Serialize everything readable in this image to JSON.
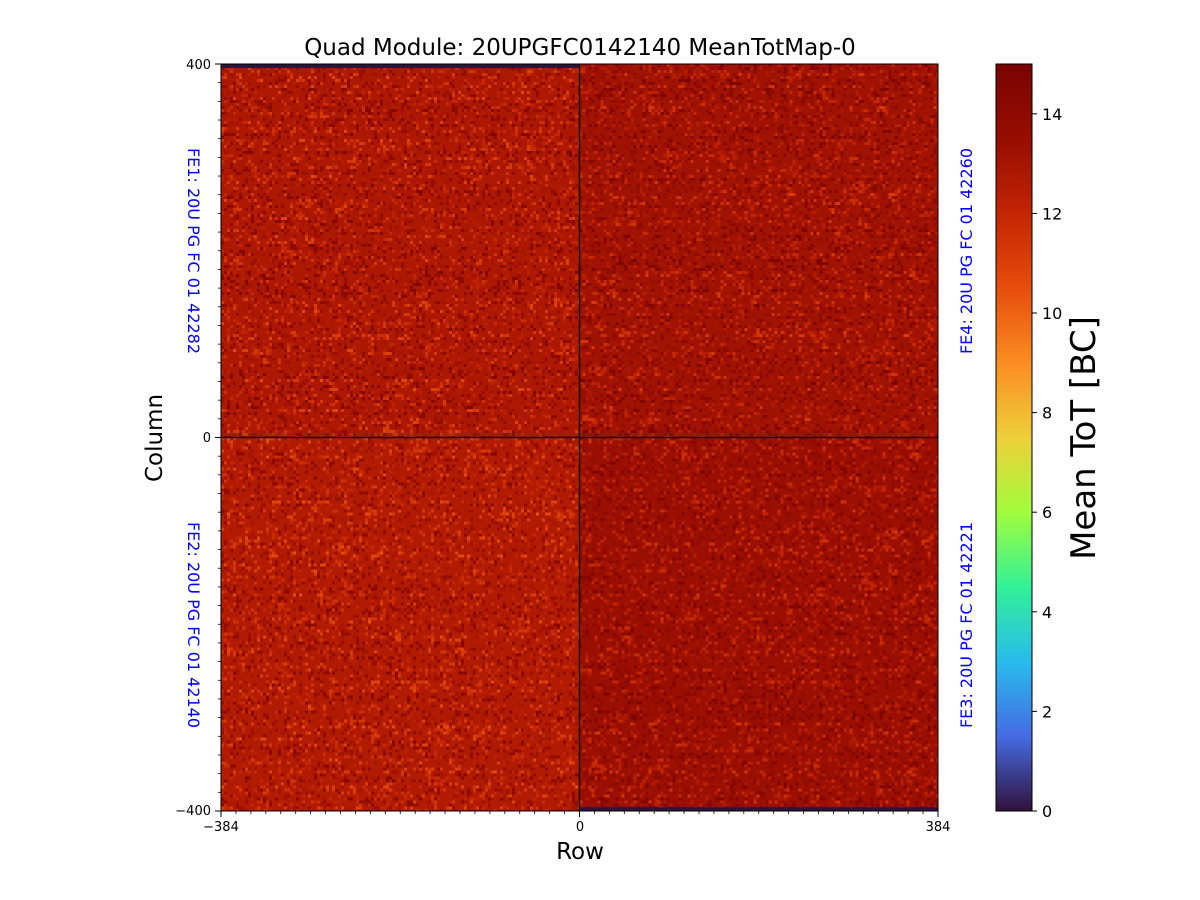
{
  "chart_data": {
    "type": "heatmap",
    "title": "Quad Module: 20UPGFC0142140 MeanTotMap-0",
    "xlabel": "Row",
    "ylabel": "Column",
    "xlim": [
      -384,
      384
    ],
    "ylim": [
      -400,
      400
    ],
    "xticks": [
      "−384",
      "0",
      "384"
    ],
    "yticks": [
      "400",
      "0",
      "−400"
    ],
    "colorbar": {
      "label": "Mean ToT [BC]",
      "range": [
        0,
        15
      ],
      "ticks": [
        "0",
        "2",
        "4",
        "6",
        "8",
        "10",
        "12",
        "14"
      ],
      "colormap": "turbo"
    },
    "quadrants": [
      {
        "label": "FE1: 20U PG FC 01 42282",
        "x_range": [
          -384,
          0
        ],
        "y_range": [
          0,
          400
        ],
        "mean_tot": 12.8,
        "side": "left"
      },
      {
        "label": "FE4: 20U PG FC 01 42260",
        "x_range": [
          0,
          384
        ],
        "y_range": [
          0,
          400
        ],
        "mean_tot": 13.2,
        "side": "right"
      },
      {
        "label": "FE2: 20U PG FC 01 42140",
        "x_range": [
          -384,
          0
        ],
        "y_range": [
          -400,
          0
        ],
        "mean_tot": 12.6,
        "side": "left"
      },
      {
        "label": "FE3: 20U PG FC 01 42221",
        "x_range": [
          0,
          384
        ],
        "y_range": [
          -400,
          0
        ],
        "mean_tot": 13.4,
        "side": "right"
      }
    ],
    "empty_bands": [
      {
        "x_range": [
          -384,
          0
        ],
        "y_range": [
          396,
          400
        ],
        "value": 0
      },
      {
        "x_range": [
          0,
          384
        ],
        "y_range": [
          -400,
          -396
        ],
        "value": 0
      }
    ],
    "label_color": "#0000ff"
  }
}
